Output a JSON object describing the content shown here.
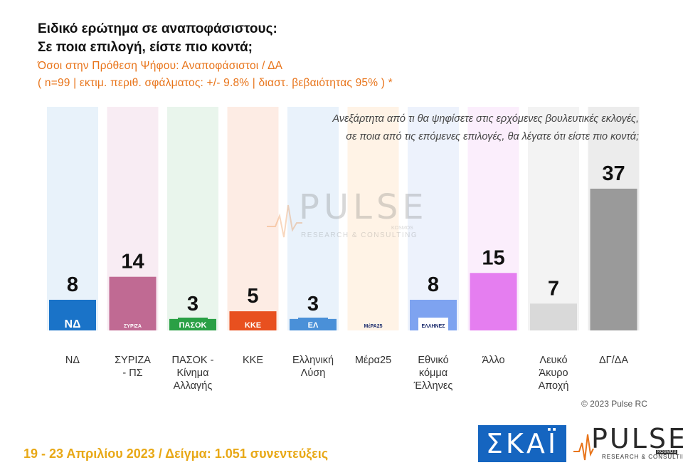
{
  "header": {
    "title_line1": "Ειδικό ερώτημα σε αναποφάσιστους:",
    "title_line2": "Σε ποια επιλογή, είστε πιο κοντά;",
    "subtitle_line1": "Όσοι στην Πρόθεση Ψήφου: Αναποφάσιστοι / ΔΑ",
    "subtitle_line2": "( n=99  |  εκτιμ. περιθ. σφάλματος: +/- 9.8%  |  διαστ. βεβαιότητας 95% ) *"
  },
  "question": {
    "line1": "Ανεξάρτητα από τι θα ψηφίσετε στις ερχόμενες βουλευτικές εκλογές,",
    "line2": "σε ποια από τις επόμενες επιλογές, θα λέγατε ότι είστε πιο κοντά;"
  },
  "watermark": {
    "brand": "PULSE",
    "tagline": "RESEARCH & CONSULTING",
    "badge": "KOSMOS"
  },
  "chart_data": {
    "type": "bar",
    "categories": [
      "ΝΔ",
      "ΣΥΡΙΖΑ - ΠΣ",
      "ΠΑΣΟΚ - Κίνημα Αλλαγής",
      "ΚΚΕ",
      "Ελληνική Λύση",
      "Μέρα25",
      "Εθνικό κόμμα Έλληνες",
      "Άλλο",
      "Λευκό Άκυρο Αποχή",
      "ΔΓ/ΔΑ"
    ],
    "category_lines": [
      [
        "ΝΔ"
      ],
      [
        "ΣΥΡΙΖΑ",
        "- ΠΣ"
      ],
      [
        "ΠΑΣΟΚ -",
        "Κίνημα",
        "Αλλαγής"
      ],
      [
        "ΚΚΕ"
      ],
      [
        "Ελληνική",
        "Λύση"
      ],
      [
        "Μέρα25"
      ],
      [
        "Εθνικό",
        "κόμμα",
        "Έλληνες"
      ],
      [
        "Άλλο"
      ],
      [
        "Λευκό",
        "Άκυρο",
        "Αποχή"
      ],
      [
        "ΔΓ/ΔΑ"
      ]
    ],
    "values": [
      8,
      14,
      3,
      5,
      3,
      null,
      8,
      15,
      7,
      37
    ],
    "data_labels": [
      "8",
      "14",
      "3",
      "5",
      "3",
      "",
      "8",
      "15",
      "7",
      "37"
    ],
    "bar_colors": [
      "#1a73c8",
      "#c06a93",
      "#2aa045",
      "#e8501f",
      "#4a90d8",
      "#ff6a55",
      "#7ea3f0",
      "#e57ef0",
      "#d9d9d9",
      "#9a9a9a"
    ],
    "bg_colors": [
      "#e8f2fa",
      "#f8ecf3",
      "#e9f5ec",
      "#fdece4",
      "#e9f2fb",
      "#fff3e6",
      "#edf2fc",
      "#fbeefc",
      "#f3f3f3",
      "#ececec"
    ],
    "logos": [
      "ΝΔ",
      "ΣΥΡΙΖΑ",
      "ΠΑΣΟΚ",
      "ΚΚΕ",
      "ΕΛ",
      "ΜέΡΑ25",
      "ΕΛΛΗΝΕΣ",
      "",
      "",
      ""
    ],
    "ylim": [
      0,
      40
    ]
  },
  "copyright": "© 2023 Pulse RC",
  "footer": "19 - 23  Απριλίου  2023  /  Δείγμα:  1.051 συνεντεύξεις",
  "logos": {
    "skai": "ΣΚΑΪ",
    "pulse": "PULSE",
    "pulse_tagline": "RESEARCH & CONSULTING",
    "pulse_badge": "KOSMOS"
  }
}
